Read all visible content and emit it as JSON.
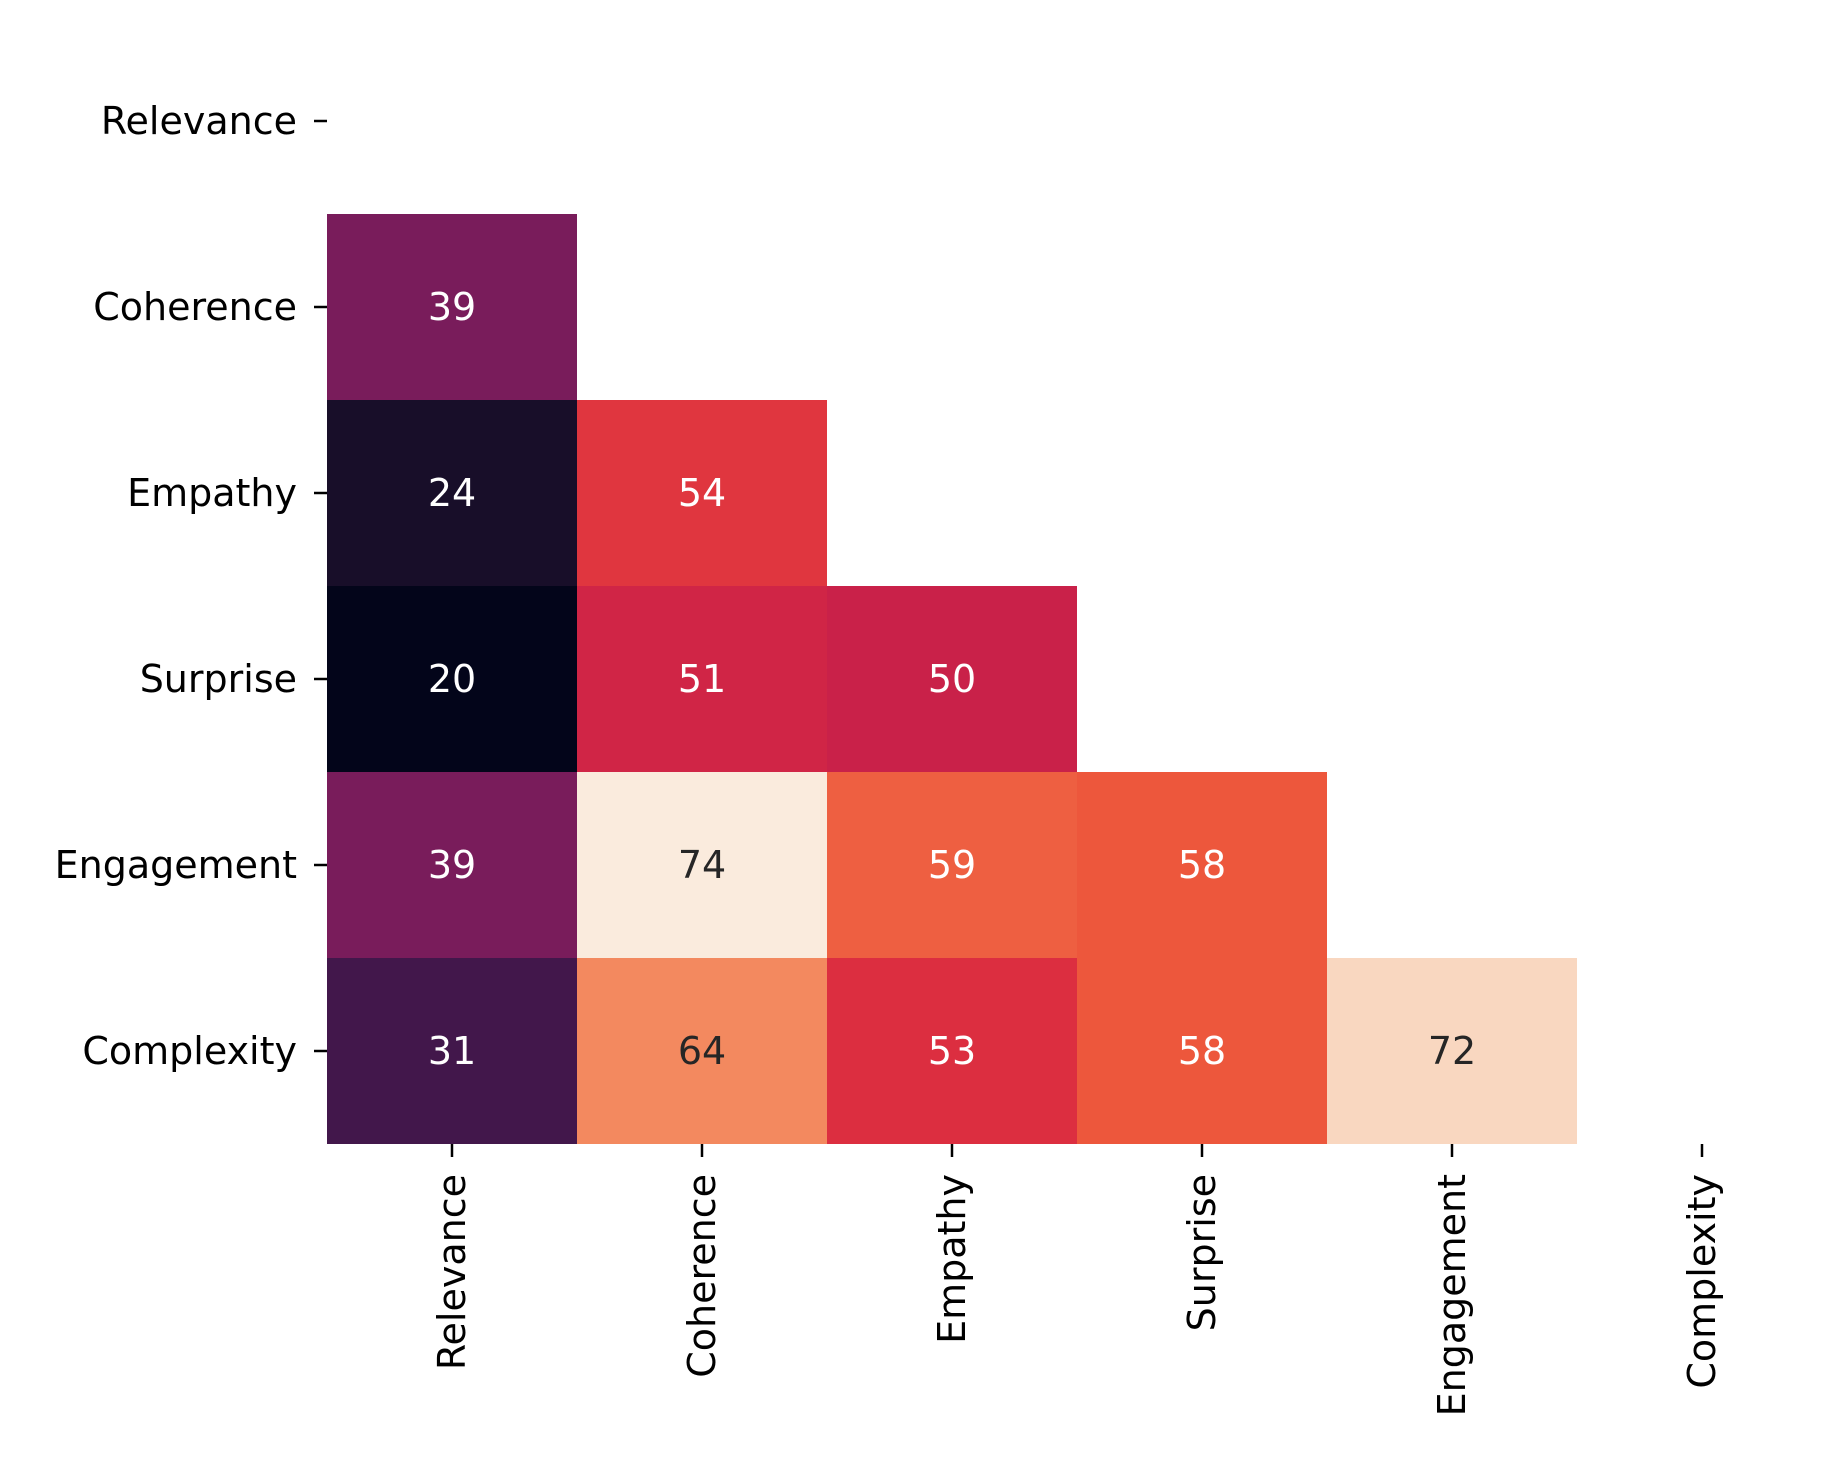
{
  "chart_data": {
    "type": "heatmap",
    "title": "",
    "xlabel": "",
    "ylabel": "",
    "rows": [
      "Relevance",
      "Coherence",
      "Empathy",
      "Surprise",
      "Engagement",
      "Complexity"
    ],
    "cols": [
      "Relevance",
      "Coherence",
      "Empathy",
      "Surprise",
      "Engagement",
      "Complexity"
    ],
    "mask": "upper triangle including diagonal",
    "values": [
      [
        null,
        null,
        null,
        null,
        null,
        null
      ],
      [
        39,
        null,
        null,
        null,
        null,
        null
      ],
      [
        24,
        54,
        null,
        null,
        null,
        null
      ],
      [
        20,
        51,
        50,
        null,
        null,
        null
      ],
      [
        39,
        74,
        59,
        58,
        null,
        null
      ],
      [
        31,
        64,
        53,
        58,
        72,
        null
      ]
    ],
    "value_range": [
      20,
      74
    ],
    "colormap": "rocket",
    "colorbar": false,
    "grid": false
  }
}
